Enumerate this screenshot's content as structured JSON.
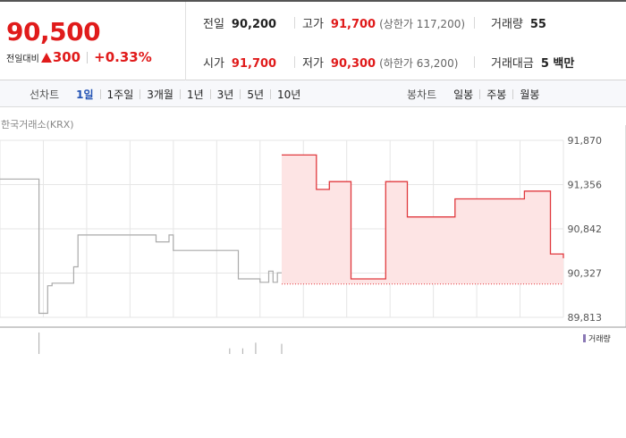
{
  "summary": {
    "current_price": "90,500",
    "change_label": "전일대비",
    "change_amount": "300",
    "change_rate": "+0.33%",
    "direction": "up",
    "stats": {
      "prev_close": {
        "label": "전일",
        "value": "90,200"
      },
      "high": {
        "label": "고가",
        "value": "91,700",
        "limit": "(상한가 117,200)"
      },
      "volume": {
        "label": "거래량",
        "value": "55"
      },
      "open": {
        "label": "시가",
        "value": "91,700"
      },
      "low": {
        "label": "저가",
        "value": "90,300",
        "limit": "(하한가 63,200)"
      },
      "amount": {
        "label": "거래대금",
        "value": "5 백만"
      }
    }
  },
  "tabs": {
    "line_label": "선차트",
    "line_periods": [
      "1일",
      "1주일",
      "3개월",
      "1년",
      "3년",
      "5년",
      "10년"
    ],
    "active_period": "1일",
    "candle_label": "봉차트",
    "candle_periods": [
      "일봉",
      "주봉",
      "월봉"
    ]
  },
  "chart": {
    "exchange": "한국거래소(KRX)",
    "volume_legend": "거래량",
    "colors": {
      "up": "#e0393e",
      "up_fill": "#fde4e4",
      "prev_day": "#aaaaaa",
      "grid": "#e6e6e6",
      "volume": "#8a78b5"
    }
  },
  "chart_data": {
    "type": "line",
    "y_ticks": [
      "91,870",
      "91,356",
      "90,842",
      "90,327",
      "89,813"
    ],
    "ylim": [
      89813,
      91870
    ],
    "base_price": 90200,
    "x_slots": 130,
    "series": [
      {
        "segment": "previous",
        "points": [
          [
            0,
            91420
          ],
          [
            9,
            91420
          ],
          [
            9,
            89860
          ],
          [
            11,
            89860
          ],
          [
            11,
            90180
          ],
          [
            12,
            90180
          ],
          [
            12,
            90210
          ],
          [
            17,
            90210
          ],
          [
            17,
            90400
          ],
          [
            18,
            90400
          ],
          [
            18,
            90770
          ],
          [
            36,
            90770
          ],
          [
            36,
            90690
          ],
          [
            39,
            90690
          ],
          [
            39,
            90770
          ],
          [
            40,
            90770
          ],
          [
            40,
            90590
          ],
          [
            55,
            90590
          ],
          [
            55,
            90260
          ],
          [
            60,
            90260
          ],
          [
            60,
            90220
          ],
          [
            62,
            90220
          ],
          [
            62,
            90350
          ],
          [
            63,
            90350
          ],
          [
            63,
            90220
          ],
          [
            64,
            90220
          ],
          [
            64,
            90330
          ],
          [
            65,
            90330
          ]
        ]
      },
      {
        "segment": "today",
        "points": [
          [
            65,
            91700
          ],
          [
            73,
            91700
          ],
          [
            73,
            91300
          ],
          [
            76,
            91300
          ],
          [
            76,
            91390
          ],
          [
            81,
            91390
          ],
          [
            81,
            90260
          ],
          [
            89,
            90260
          ],
          [
            89,
            91390
          ],
          [
            94,
            91390
          ],
          [
            94,
            90980
          ],
          [
            105,
            90980
          ],
          [
            105,
            91190
          ],
          [
            121,
            91190
          ],
          [
            121,
            91280
          ],
          [
            127,
            91280
          ],
          [
            127,
            90550
          ],
          [
            130,
            90550
          ],
          [
            130,
            90500
          ]
        ]
      }
    ],
    "volume_bars": [
      {
        "x": 9,
        "value": 19
      },
      {
        "x": 53,
        "value": 5
      },
      {
        "x": 56,
        "value": 5
      },
      {
        "x": 59,
        "value": 10
      },
      {
        "x": 65,
        "value": 9
      }
    ]
  }
}
